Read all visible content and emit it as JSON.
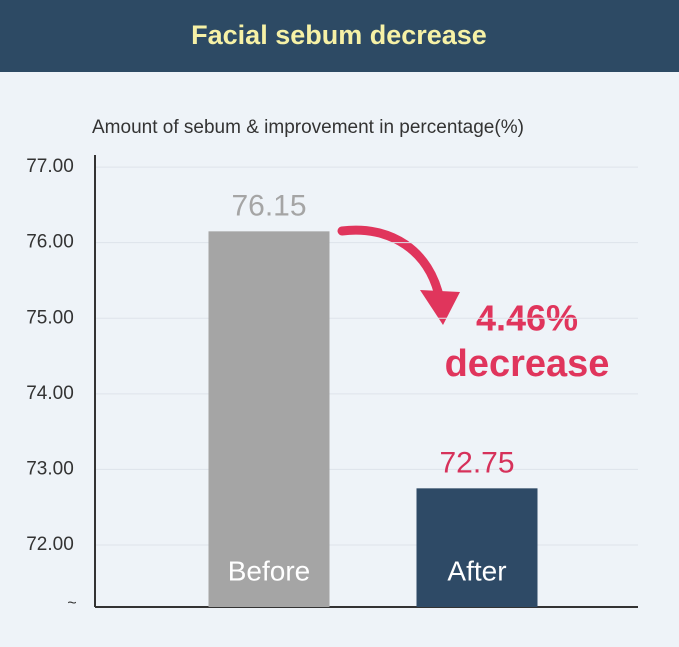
{
  "chart_data": {
    "type": "bar",
    "title": "Facial sebum decrease",
    "subtitle": "Amount of sebum & improvement in percentage(%)",
    "categories": [
      "Before",
      "After"
    ],
    "values": [
      76.15,
      72.75
    ],
    "colors": [
      "#a5a5a5",
      "#2e4a66"
    ],
    "value_label_colors": [
      "#a5a5a5",
      "#d6315a"
    ],
    "ylim": [
      71.18,
      77.16
    ],
    "yticks": [
      {
        "value": 77,
        "label": "77.00"
      },
      {
        "value": 76,
        "label": "76.00"
      },
      {
        "value": 75,
        "label": "75.00"
      },
      {
        "value": 74,
        "label": "74.00"
      },
      {
        "value": 73,
        "label": "73.00"
      },
      {
        "value": 72,
        "label": "72.00"
      }
    ],
    "axis_break_label": "~",
    "annotation": [
      "4.46%",
      "decrease"
    ],
    "grid": true
  }
}
